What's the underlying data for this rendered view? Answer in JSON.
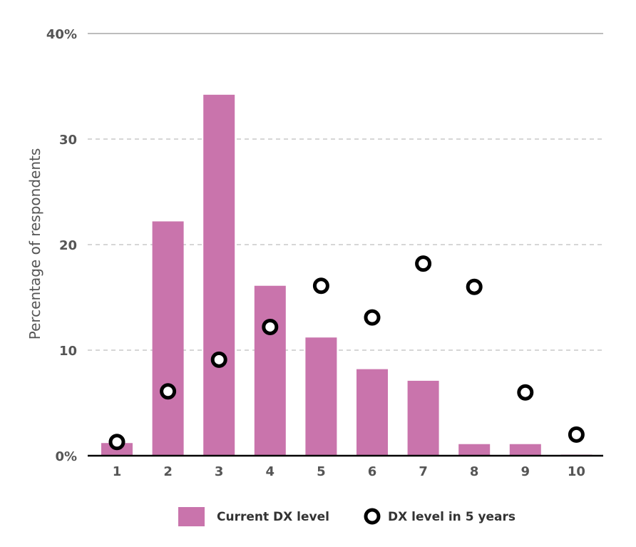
{
  "chart_data": {
    "type": "bar",
    "title": "",
    "xlabel": "",
    "ylabel": "Percentage of respondents",
    "ylim": [
      0,
      40
    ],
    "yticks": [
      {
        "value": 0,
        "label": "0%"
      },
      {
        "value": 10,
        "label": "10"
      },
      {
        "value": 20,
        "label": "20"
      },
      {
        "value": 30,
        "label": "30"
      },
      {
        "value": 40,
        "label": "40%"
      }
    ],
    "categories": [
      "1",
      "2",
      "3",
      "4",
      "5",
      "6",
      "7",
      "8",
      "9",
      "10"
    ],
    "grid": true,
    "legend_position": "bottom",
    "series": [
      {
        "name": "Current DX level",
        "type": "bar",
        "color": "#c974ac",
        "values": [
          1.2,
          22.2,
          34.2,
          16.1,
          11.2,
          8.2,
          7.1,
          1.1,
          1.1,
          0.1
        ]
      },
      {
        "name": "DX level in 5 years",
        "type": "scatter",
        "marker": "ring",
        "color": "#000000",
        "values": [
          1.3,
          6.1,
          9.1,
          12.2,
          16.1,
          13.1,
          18.2,
          16.0,
          6.0,
          2.0
        ]
      }
    ]
  }
}
